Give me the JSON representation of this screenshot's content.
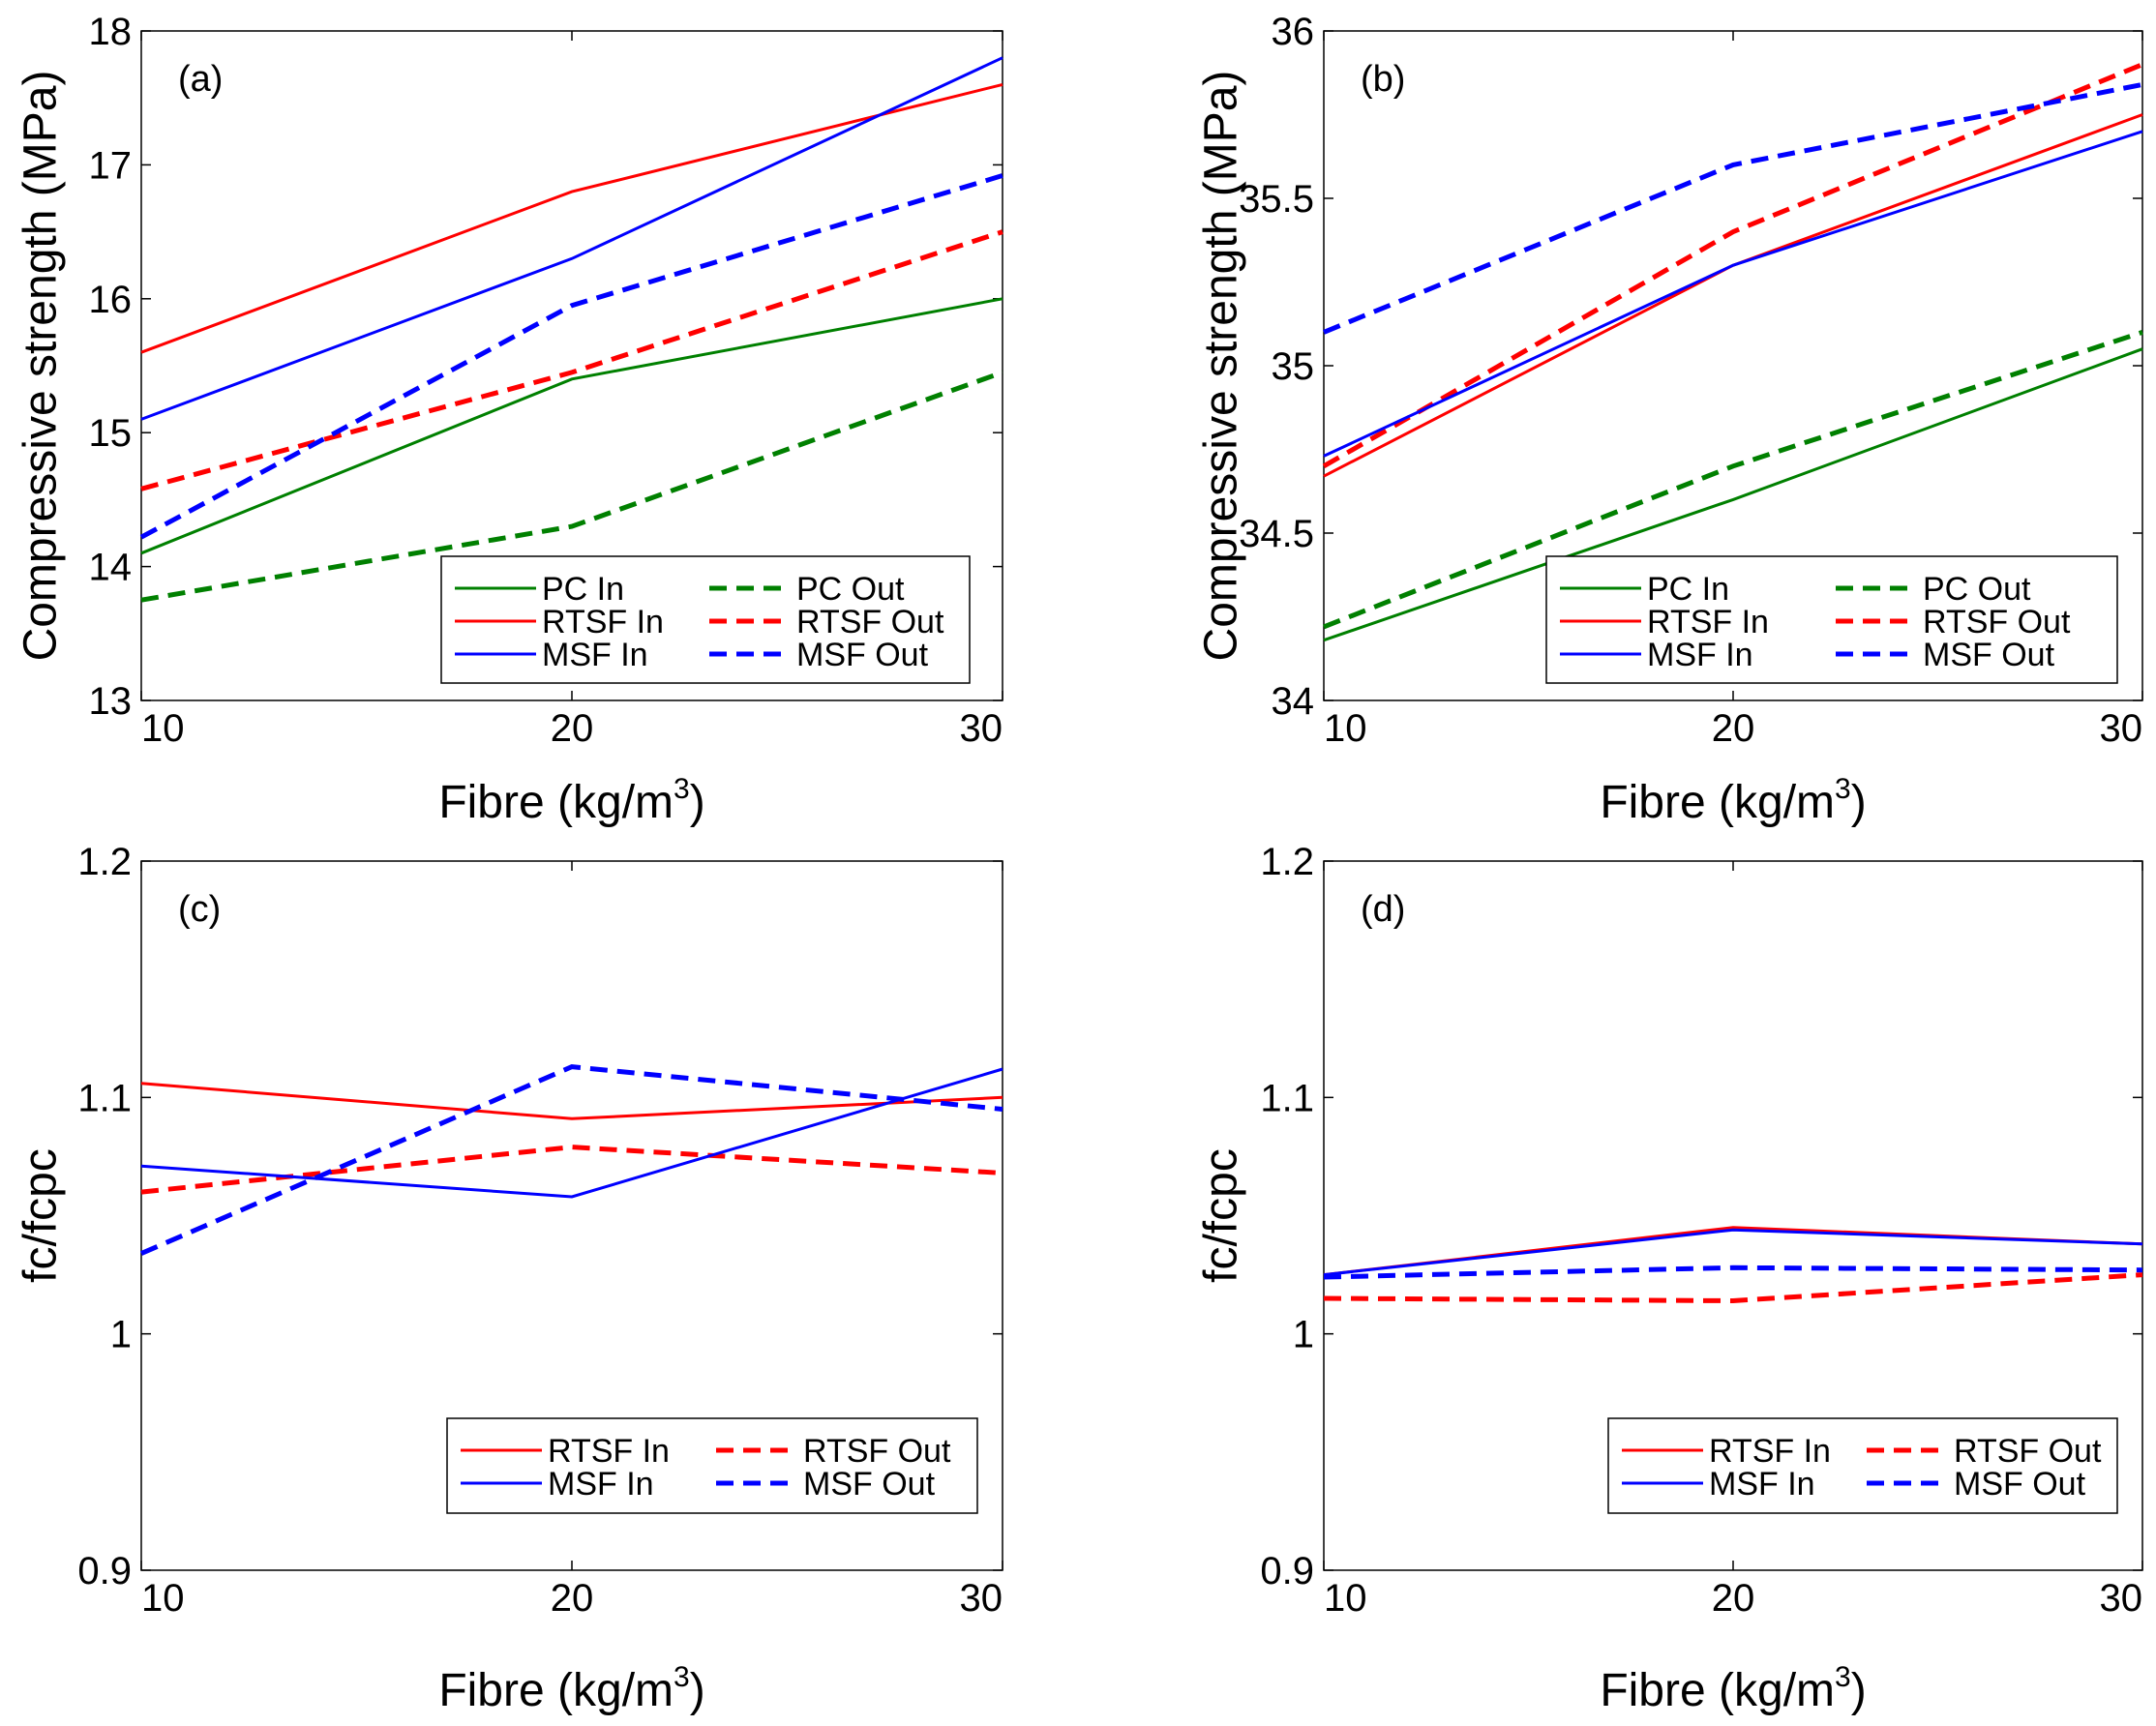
{
  "chart_data": [
    {
      "type": "line",
      "label": "(a)",
      "xlabel": "Fibre (kg/m",
      "xlabel_sup": "3",
      "xlabel_close": ")",
      "ylabel": "Compressive strength (MPa)",
      "x": [
        10,
        20,
        30
      ],
      "xticks": [
        "10",
        "20",
        "30"
      ],
      "ylim": [
        13,
        18
      ],
      "yticks": [
        "13",
        "14",
        "15",
        "16",
        "17",
        "18"
      ],
      "series": [
        {
          "name": "PC In",
          "color": "#008000",
          "style": "solid",
          "values": [
            14.1,
            15.4,
            16.0
          ]
        },
        {
          "name": "PC Out",
          "color": "#008000",
          "style": "dashed",
          "values": [
            13.75,
            14.3,
            15.45
          ]
        },
        {
          "name": "RTSF In",
          "color": "#ff0000",
          "style": "solid",
          "values": [
            15.6,
            16.8,
            17.6
          ]
        },
        {
          "name": "RTSF Out",
          "color": "#ff0000",
          "style": "dashed",
          "values": [
            14.58,
            15.45,
            16.5
          ]
        },
        {
          "name": "MSF In",
          "color": "#0000ff",
          "style": "solid",
          "values": [
            15.1,
            16.3,
            17.8
          ]
        },
        {
          "name": "MSF Out",
          "color": "#0000ff",
          "style": "dashed",
          "values": [
            14.22,
            15.95,
            16.92
          ]
        }
      ]
    },
    {
      "type": "line",
      "label": "(b)",
      "xlabel": "Fibre (kg/m",
      "xlabel_sup": "3",
      "xlabel_close": ")",
      "ylabel": "Compressive strength (MPa)",
      "x": [
        10,
        20,
        30
      ],
      "xticks": [
        "10",
        "20",
        "30"
      ],
      "ylim": [
        34,
        36
      ],
      "yticks": [
        "34",
        "34.5",
        "35",
        "35.5",
        "36"
      ],
      "series": [
        {
          "name": "PC In",
          "color": "#008000",
          "style": "solid",
          "values": [
            34.18,
            34.6,
            35.05
          ]
        },
        {
          "name": "PC Out",
          "color": "#008000",
          "style": "dashed",
          "values": [
            34.22,
            34.7,
            35.1
          ]
        },
        {
          "name": "RTSF In",
          "color": "#ff0000",
          "style": "solid",
          "values": [
            34.67,
            35.3,
            35.75
          ]
        },
        {
          "name": "RTSF Out",
          "color": "#ff0000",
          "style": "dashed",
          "values": [
            34.7,
            35.4,
            35.9
          ]
        },
        {
          "name": "MSF In",
          "color": "#0000ff",
          "style": "solid",
          "values": [
            34.73,
            35.3,
            35.7
          ]
        },
        {
          "name": "MSF Out",
          "color": "#0000ff",
          "style": "dashed",
          "values": [
            35.1,
            35.6,
            35.84
          ]
        }
      ]
    },
    {
      "type": "line",
      "label": "(c)",
      "xlabel": "Fibre (kg/m",
      "xlabel_sup": "3",
      "xlabel_close": ")",
      "ylabel": "fc/fcpc",
      "x": [
        10,
        20,
        30
      ],
      "xticks": [
        "10",
        "20",
        "30"
      ],
      "ylim": [
        0.9,
        1.2
      ],
      "yticks": [
        "0.9",
        "1",
        "1.1",
        "1.2"
      ],
      "series": [
        {
          "name": "RTSF In",
          "color": "#ff0000",
          "style": "solid",
          "values": [
            1.106,
            1.091,
            1.1
          ]
        },
        {
          "name": "RTSF Out",
          "color": "#ff0000",
          "style": "dashed",
          "values": [
            1.06,
            1.079,
            1.068
          ]
        },
        {
          "name": "MSF In",
          "color": "#0000ff",
          "style": "solid",
          "values": [
            1.071,
            1.058,
            1.112
          ]
        },
        {
          "name": "MSF Out",
          "color": "#0000ff",
          "style": "dashed",
          "values": [
            1.034,
            1.113,
            1.095
          ]
        }
      ]
    },
    {
      "type": "line",
      "label": "(d)",
      "xlabel": "Fibre (kg/m",
      "xlabel_sup": "3",
      "xlabel_close": ")",
      "ylabel": "fc/fcpc",
      "x": [
        10,
        20,
        30
      ],
      "xticks": [
        "10",
        "20",
        "30"
      ],
      "ylim": [
        0.9,
        1.2
      ],
      "yticks": [
        "0.9",
        "1",
        "1.1",
        "1.2"
      ],
      "series": [
        {
          "name": "RTSF In",
          "color": "#ff0000",
          "style": "solid",
          "values": [
            1.025,
            1.045,
            1.038
          ]
        },
        {
          "name": "RTSF Out",
          "color": "#ff0000",
          "style": "dashed",
          "values": [
            1.015,
            1.014,
            1.025
          ]
        },
        {
          "name": "MSF In",
          "color": "#0000ff",
          "style": "solid",
          "values": [
            1.025,
            1.044,
            1.038
          ]
        },
        {
          "name": "MSF Out",
          "color": "#0000ff",
          "style": "dashed",
          "values": [
            1.024,
            1.028,
            1.027
          ]
        }
      ]
    }
  ]
}
